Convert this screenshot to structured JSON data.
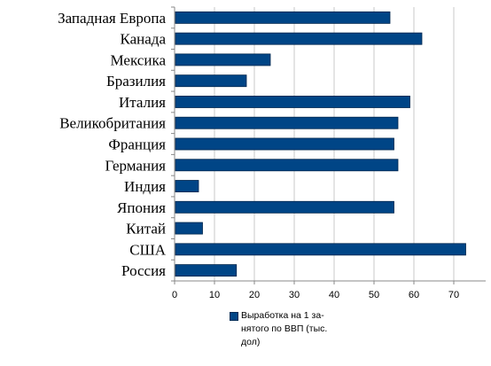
{
  "chart_data": {
    "type": "bar",
    "orientation": "horizontal",
    "categories": [
      "Западная Европа",
      "Канада",
      "Мексика",
      "Бразилия",
      "Италия",
      "Великобритания",
      "Франция",
      "Германия",
      "Индия",
      "Япония",
      "Китай",
      "США",
      "Россия"
    ],
    "series": [
      {
        "name": "Выработка на 1 за-нятого по ВВП (тыс. дол)",
        "values": [
          54,
          62,
          24,
          18,
          59,
          56,
          55,
          56,
          6,
          55,
          7,
          73,
          15.5
        ],
        "color": "#004586"
      }
    ],
    "xticks": [
      "0",
      "10",
      "20",
      "30",
      "40",
      "50",
      "60",
      "70"
    ],
    "xlim": [
      0,
      78
    ],
    "grid": true,
    "legend_position": "bottom"
  }
}
